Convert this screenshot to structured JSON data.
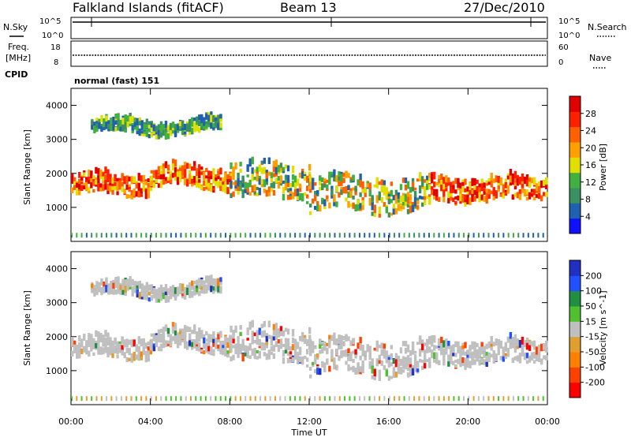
{
  "header": {
    "station": "Falkland Islands (fitACF)",
    "beam": "Beam 13",
    "date": "27/Dec/2010"
  },
  "side_labels": {
    "nsky": "N.Sky",
    "nsearch": "N.Search",
    "freq_line1": "Freq.",
    "freq_line2": "[MHz]",
    "nave": "Nave",
    "cpid": "CPID",
    "cpid_value": "normal (fast) 151"
  },
  "noise_panel": {
    "left_ticks": [
      "10^5",
      "10^0"
    ],
    "right_ticks": [
      "10^5",
      "10^0"
    ]
  },
  "freq_panel": {
    "left_ticks": [
      "18",
      "8"
    ],
    "right_ticks": [
      "60",
      "0"
    ]
  },
  "colors": {
    "power_scale": [
      "#1010ff",
      "#2060b0",
      "#3a9060",
      "#40b040",
      "#e0e000",
      "#ffa000",
      "#ff6000",
      "#ff2000",
      "#e00000"
    ],
    "velocity_scale": [
      "#2030c0",
      "#2050ff",
      "#209040",
      "#50c030",
      "#c0c0c0",
      "#e0a030",
      "#ff8000",
      "#ff4000",
      "#ff0000"
    ],
    "gray": "#c0c0c0"
  },
  "chart_data": [
    {
      "type": "heatmap",
      "name": "power",
      "ylabel": "Slant Range [km]",
      "yticks": [
        "1000",
        "2000",
        "3000",
        "4000"
      ],
      "ylim": [
        0,
        4500
      ],
      "colorbar_label": "Power [dB]",
      "colorbar_ticks": [
        "28",
        "24",
        "20",
        "16",
        "12",
        "8",
        "4"
      ],
      "colorbar_range": [
        0,
        32
      ],
      "bands": [
        {
          "start_h": 0.0,
          "end_h": 4.0,
          "range_km": [
            1300,
            1900
          ],
          "level": "high"
        },
        {
          "start_h": 4.0,
          "end_h": 8.0,
          "range_km": [
            1500,
            2100
          ],
          "level": "high"
        },
        {
          "start_h": 8.0,
          "end_h": 12.0,
          "range_km": [
            1200,
            2200
          ],
          "level": "mid"
        },
        {
          "start_h": 12.0,
          "end_h": 18.0,
          "range_km": [
            800,
            1800
          ],
          "level": "mid"
        },
        {
          "start_h": 18.0,
          "end_h": 24.0,
          "range_km": [
            1100,
            1800
          ],
          "level": "high"
        },
        {
          "start_h": 1.0,
          "end_h": 7.5,
          "range_km": [
            3100,
            3500
          ],
          "level": "low"
        }
      ]
    },
    {
      "type": "heatmap",
      "name": "velocity",
      "ylabel": "Slant Range [km]",
      "yticks": [
        "1000",
        "2000",
        "3000",
        "4000"
      ],
      "ylim": [
        0,
        4500
      ],
      "xlabel": "Time UT",
      "xticks": [
        "00:00",
        "04:00",
        "08:00",
        "12:00",
        "16:00",
        "20:00",
        "00:00"
      ],
      "xlim": [
        0,
        24
      ],
      "colorbar_label": "Velocity [m s^-1]",
      "colorbar_ticks": [
        "200",
        "100",
        "50",
        "15",
        "-15",
        "-50",
        "-100",
        "-200"
      ],
      "colorbar_range": [
        -250,
        250
      ]
    }
  ]
}
